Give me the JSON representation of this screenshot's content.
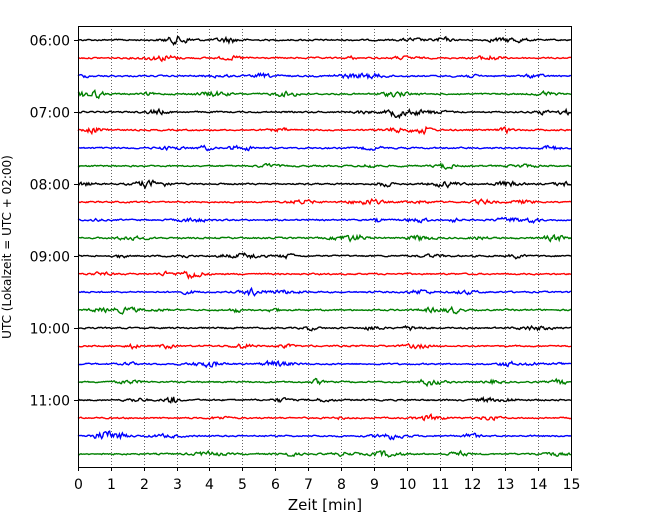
{
  "chart_data": {
    "type": "line",
    "title": "",
    "xlabel": "Zeit  [min]",
    "ylabel": "UTC (Lokalzeit = UTC + 02:00)",
    "xlim": [
      0,
      15
    ],
    "x_ticks": [
      0,
      1,
      2,
      3,
      4,
      5,
      6,
      7,
      8,
      9,
      10,
      11,
      12,
      13,
      14,
      15
    ],
    "y_tick_labels": [
      "06:00",
      "07:00",
      "08:00",
      "09:00",
      "10:00",
      "11:00"
    ],
    "grid": "vertical dotted lines at each minute",
    "trace_colors": [
      "#000000",
      "#ff0000",
      "#0000ff",
      "#008000"
    ],
    "rows": [
      {
        "start": "06:00",
        "color": "#000000"
      },
      {
        "start": "06:15",
        "color": "#ff0000"
      },
      {
        "start": "06:30",
        "color": "#0000ff"
      },
      {
        "start": "06:45",
        "color": "#008000"
      },
      {
        "start": "07:00",
        "color": "#000000"
      },
      {
        "start": "07:15",
        "color": "#ff0000"
      },
      {
        "start": "07:30",
        "color": "#0000ff"
      },
      {
        "start": "07:45",
        "color": "#008000"
      },
      {
        "start": "08:00",
        "color": "#000000"
      },
      {
        "start": "08:15",
        "color": "#ff0000"
      },
      {
        "start": "08:30",
        "color": "#0000ff"
      },
      {
        "start": "08:45",
        "color": "#008000"
      },
      {
        "start": "09:00",
        "color": "#000000"
      },
      {
        "start": "09:15",
        "color": "#ff0000"
      },
      {
        "start": "09:30",
        "color": "#0000ff"
      },
      {
        "start": "09:45",
        "color": "#008000"
      },
      {
        "start": "10:00",
        "color": "#000000"
      },
      {
        "start": "10:15",
        "color": "#ff0000"
      },
      {
        "start": "10:30",
        "color": "#0000ff"
      },
      {
        "start": "10:45",
        "color": "#008000"
      },
      {
        "start": "11:00",
        "color": "#000000"
      },
      {
        "start": "11:15",
        "color": "#ff0000"
      },
      {
        "start": "11:30",
        "color": "#0000ff"
      },
      {
        "start": "11:45",
        "color": "#008000"
      }
    ]
  }
}
